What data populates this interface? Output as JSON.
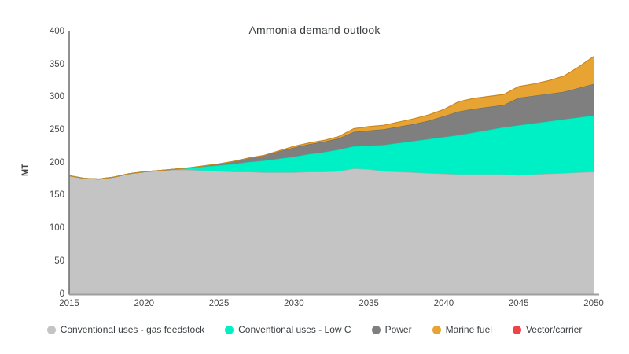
{
  "title": "Ammonia demand outlook",
  "axes": {
    "ylabel": "MT",
    "yticks": [
      0,
      50,
      100,
      150,
      200,
      250,
      300,
      350,
      400
    ],
    "xticks": [
      2015,
      2020,
      2025,
      2030,
      2035,
      2040,
      2045,
      2050
    ]
  },
  "colors": {
    "axis_line": "#757575",
    "baseline": "#9e9e9e",
    "text": "#3c4043",
    "tick_text": "#4a4a4a"
  },
  "chart_data": {
    "type": "area",
    "stacked": true,
    "title": "Ammonia demand outlook",
    "xlabel": "",
    "ylabel": "MT",
    "ylim": [
      0,
      400
    ],
    "xlim": [
      2015,
      2050
    ],
    "grid": false,
    "legend_position": "bottom",
    "x": [
      2015,
      2016,
      2017,
      2018,
      2019,
      2020,
      2021,
      2022,
      2023,
      2024,
      2025,
      2026,
      2027,
      2028,
      2029,
      2030,
      2031,
      2032,
      2033,
      2034,
      2035,
      2036,
      2037,
      2038,
      2039,
      2040,
      2041,
      2042,
      2043,
      2044,
      2045,
      2046,
      2047,
      2048,
      2049,
      2050
    ],
    "series": [
      {
        "name": "Conventional uses - gas feedstock",
        "color": "#c4c4c4",
        "edge_color": "#aeaeae",
        "values": [
          180,
          176,
          175,
          178,
          183,
          186,
          188,
          189,
          189,
          188,
          187,
          186,
          186,
          185,
          185,
          185,
          186,
          186,
          187,
          191,
          190,
          187,
          186,
          185,
          184,
          183,
          182,
          182,
          182,
          182,
          181,
          182,
          183,
          184,
          185,
          186
        ]
      },
      {
        "name": "Conventional uses - Low C",
        "color": "#00f0c5",
        "edge_color": "#00d9ae",
        "values": [
          0,
          0,
          0,
          0,
          0,
          0,
          0,
          1,
          3,
          6,
          9,
          12,
          15,
          18,
          21,
          24,
          27,
          30,
          33,
          34,
          36,
          40,
          44,
          48,
          52,
          56,
          60,
          64,
          68,
          72,
          76,
          78,
          80,
          82,
          84,
          86
        ]
      },
      {
        "name": "Power",
        "color": "#7f7f7f",
        "edge_color": "#6b6b6b",
        "values": [
          0,
          0,
          0,
          0,
          0,
          0,
          0,
          0,
          0,
          1,
          2,
          4,
          6,
          8,
          11,
          14,
          15,
          16,
          17,
          22,
          23,
          24,
          25,
          26,
          28,
          32,
          36,
          36,
          35,
          34,
          42,
          42,
          42,
          42,
          45,
          48
        ]
      },
      {
        "name": "Marine fuel",
        "color": "#e7a433",
        "edge_color": "#cc861f",
        "values": [
          0,
          0,
          0,
          0,
          0,
          0,
          0,
          0,
          0,
          0,
          0,
          0,
          0,
          0,
          1,
          2,
          2,
          2,
          3,
          5,
          6,
          6,
          7,
          8,
          9,
          10,
          15,
          16,
          16,
          16,
          17,
          18,
          20,
          24,
          32,
          42
        ]
      },
      {
        "name": "Vector/carrier",
        "color": "#ee4348",
        "edge_color": "#d63238",
        "values": [
          0,
          0,
          0,
          0,
          0,
          0,
          0,
          0,
          0,
          0,
          0,
          0,
          0,
          0,
          0,
          0,
          0,
          0,
          0,
          0,
          0,
          0,
          0,
          0,
          0,
          0,
          0,
          0,
          0,
          0,
          0,
          0,
          0,
          0,
          0,
          0
        ]
      }
    ]
  }
}
